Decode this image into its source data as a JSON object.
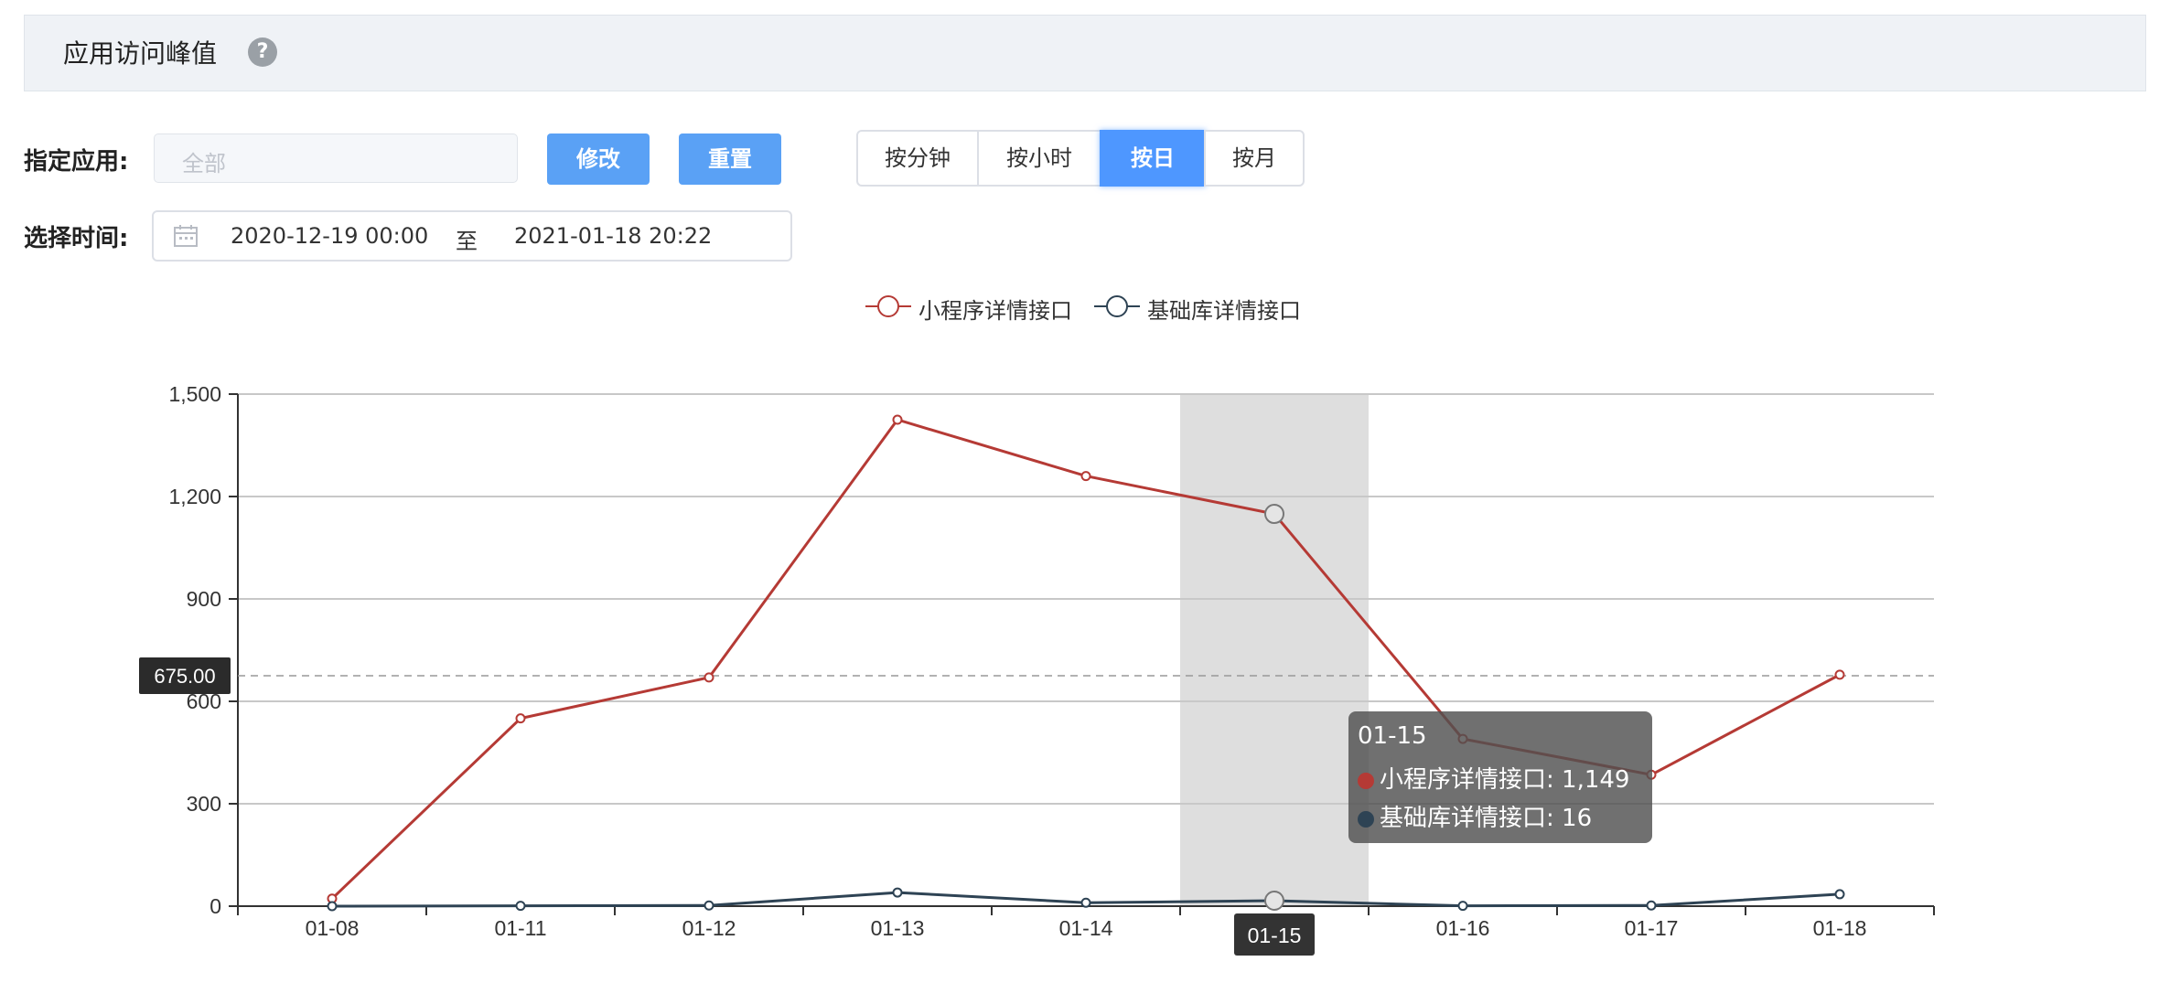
{
  "header": {
    "title": "应用访问峰值",
    "help_icon": "question-icon"
  },
  "filters": {
    "app_label": "指定应用:",
    "app_placeholder": "全部",
    "modify_label": "修改",
    "reset_label": "重置",
    "granularity": [
      "按分钟",
      "按小时",
      "按日",
      "按月"
    ],
    "granularity_active": "按日",
    "time_label": "选择时间:",
    "start": "2020-12-19 00:00",
    "sep": "至",
    "end": "2021-01-18 20:22",
    "calendar_icon": "calendar-icon"
  },
  "colors": {
    "accent": "#5aa1f5",
    "series1": "#b53a35",
    "series2": "#2e4354"
  },
  "chart_data": {
    "type": "line",
    "categories": [
      "01-08",
      "01-11",
      "01-12",
      "01-13",
      "01-14",
      "01-15",
      "01-16",
      "01-17",
      "01-18"
    ],
    "series": [
      {
        "name": "小程序详情接口",
        "values": [
          22,
          550,
          670,
          1425,
          1260,
          1149,
          490,
          385,
          678
        ]
      },
      {
        "name": "基础库详情接口",
        "values": [
          0,
          1,
          2,
          40,
          10,
          16,
          1,
          2,
          35
        ]
      }
    ],
    "yticks": [
      "0",
      "300",
      "600",
      "900",
      "1,200",
      "1,500"
    ],
    "ylim": [
      0,
      1500
    ],
    "grid": true,
    "legend": "top-center",
    "markline": {
      "value": 675,
      "label": "675.00"
    },
    "hover": {
      "category": "01-15",
      "row1": "小程序详情接口: 1,149",
      "row2": "基础库详情接口: 16"
    }
  }
}
